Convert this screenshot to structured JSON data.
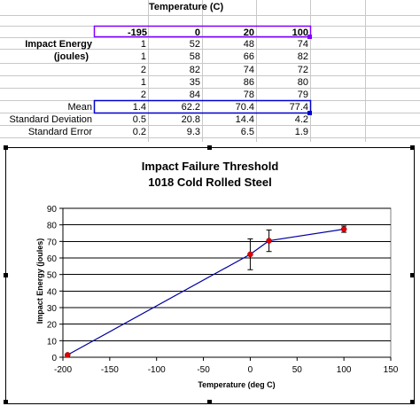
{
  "sheet": {
    "header_title": "Temperature (C)",
    "temperature_headers": [
      "-195",
      "0",
      "20",
      "100"
    ],
    "row_labels": {
      "impact_energy": "Impact Energy",
      "joules": "(joules)",
      "mean": "Mean",
      "std_dev": "Standard Deviation",
      "std_err": "Standard Error"
    },
    "data_rows": [
      [
        "1",
        "52",
        "48",
        "74"
      ],
      [
        "1",
        "58",
        "66",
        "82"
      ],
      [
        "2",
        "82",
        "74",
        "72"
      ],
      [
        "1",
        "35",
        "86",
        "80"
      ],
      [
        "2",
        "84",
        "78",
        "79"
      ]
    ],
    "mean_row": [
      "1.4",
      "62.2",
      "70.4",
      "77.4"
    ],
    "std_dev_row": [
      "0.5",
      "20.8",
      "14.4",
      "4.2"
    ],
    "std_err_row": [
      "0.2",
      "9.3",
      "6.5",
      "1.9"
    ],
    "selection_colors": {
      "header_range": "#8000ff",
      "mean_range": "#0000cc"
    }
  },
  "chart_data": {
    "type": "scatter",
    "title": "Impact Failure Threshold",
    "subtitle": "1018 Cold Rolled Steel",
    "xlabel": "Temperature (deg C)",
    "ylabel": "Impact Energy (joules)",
    "xlim": [
      -200,
      150
    ],
    "ylim": [
      0,
      90
    ],
    "x_ticks": [
      -200,
      -150,
      -100,
      -50,
      0,
      50,
      100,
      150
    ],
    "y_ticks": [
      0,
      10,
      20,
      30,
      40,
      50,
      60,
      70,
      80,
      90
    ],
    "grid": "horizontal",
    "series": [
      {
        "x": [
          -195,
          0,
          20,
          100
        ],
        "y": [
          1.4,
          62.2,
          70.4,
          77.4
        ],
        "error": [
          0.2,
          9.3,
          6.5,
          1.9
        ],
        "line_color": "#0000a0",
        "marker_color": "#e00000"
      }
    ]
  }
}
